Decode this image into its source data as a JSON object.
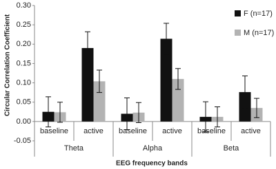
{
  "chart_data": {
    "type": "bar",
    "y_label": "Circular Correlation Coefficient",
    "x_label": "EEG frequency bands",
    "categories": [
      "baseline",
      "active",
      "baseline",
      "active",
      "baseline",
      "active"
    ],
    "groups": [
      "Theta",
      "Alpha",
      "Beta"
    ],
    "series": [
      {
        "name": "F (n=17)",
        "color": "#111111",
        "values": [
          0.025,
          0.19,
          0.02,
          0.214,
          0.012,
          0.076
        ],
        "errors": [
          0.039,
          0.042,
          0.041,
          0.04,
          0.039,
          0.042
        ]
      },
      {
        "name": "M (n=17)",
        "color": "#b3b3b3",
        "values": [
          0.024,
          0.104,
          0.023,
          0.11,
          0.012,
          0.035
        ],
        "errors": [
          0.026,
          0.029,
          0.026,
          0.027,
          0.026,
          0.025
        ]
      }
    ],
    "ylim": [
      -0.05,
      0.3
    ],
    "yticks": [
      {
        "value": -0.05,
        "label": "-0.05"
      },
      {
        "value": 0,
        "label": "0.00"
      },
      {
        "value": 0.05,
        "label": "0.05"
      },
      {
        "value": 0.1,
        "label": "0.10"
      },
      {
        "value": 0.15,
        "label": "0.15"
      },
      {
        "value": 0.2,
        "label": "0.20"
      },
      {
        "value": 0.25,
        "label": "0.25"
      },
      {
        "value": 0.3,
        "label": "0.30"
      }
    ],
    "grid": false,
    "legend": "top-right"
  }
}
